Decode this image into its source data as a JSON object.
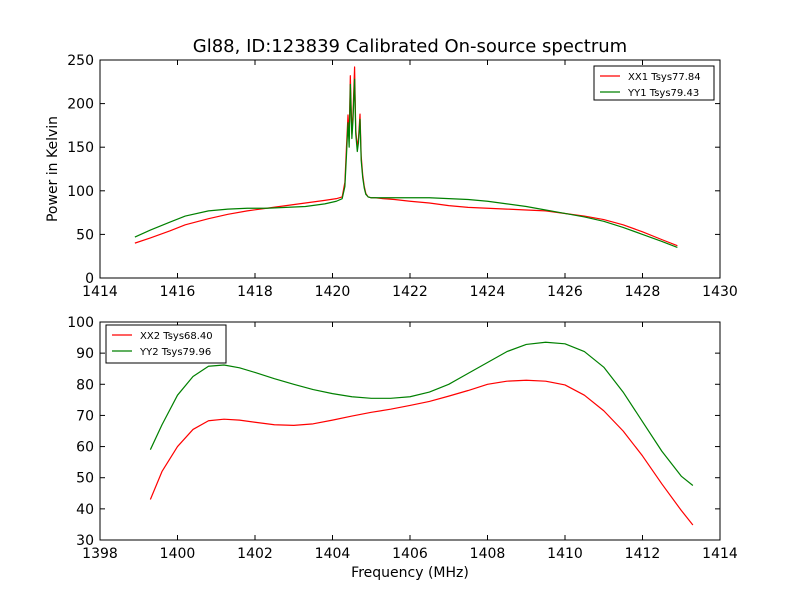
{
  "chart_data": [
    {
      "type": "line",
      "title": "Gl88, ID:123839 Calibrated On-source spectrum",
      "xlabel": "",
      "ylabel": "Power in Kelvin",
      "xlim": [
        1414,
        1430
      ],
      "ylim": [
        0,
        250
      ],
      "xticks": [
        "1414",
        "1416",
        "1418",
        "1420",
        "1422",
        "1424",
        "1426",
        "1428",
        "1430"
      ],
      "yticks": [
        "0",
        "50",
        "100",
        "150",
        "200",
        "250"
      ],
      "legend_position": "top-right",
      "grid": false,
      "series": [
        {
          "name": "XX1 Tsys77.84",
          "color": "#ff0000",
          "x": [
            1414.9,
            1415.3,
            1415.8,
            1416.2,
            1416.8,
            1417.3,
            1417.8,
            1418.3,
            1418.8,
            1419.3,
            1419.8,
            1420.1,
            1420.25,
            1420.32,
            1420.36,
            1420.4,
            1420.43,
            1420.46,
            1420.5,
            1420.53,
            1420.57,
            1420.6,
            1420.64,
            1420.67,
            1420.71,
            1420.74,
            1420.78,
            1420.82,
            1420.86,
            1420.92,
            1421.0,
            1421.1,
            1421.3,
            1421.6,
            1422.0,
            1422.5,
            1423.0,
            1423.5,
            1424.0,
            1424.5,
            1425.0,
            1425.5,
            1426.0,
            1426.5,
            1427.0,
            1427.5,
            1428.0,
            1428.5,
            1428.9
          ],
          "y": [
            40,
            46,
            54,
            61,
            68,
            73,
            77,
            80,
            83,
            86,
            89,
            91,
            93,
            110,
            150,
            187,
            160,
            232,
            165,
            190,
            242,
            170,
            150,
            160,
            188,
            140,
            118,
            105,
            97,
            93,
            92,
            92,
            91,
            90,
            88,
            86,
            83,
            81,
            80,
            79,
            78,
            77,
            74,
            71,
            67,
            61,
            53,
            44,
            37
          ]
        },
        {
          "name": "YY1 Tsys79.43",
          "color": "#008000",
          "x": [
            1414.9,
            1415.3,
            1415.8,
            1416.2,
            1416.8,
            1417.3,
            1417.8,
            1418.3,
            1418.8,
            1419.3,
            1419.8,
            1420.1,
            1420.25,
            1420.32,
            1420.36,
            1420.4,
            1420.43,
            1420.46,
            1420.5,
            1420.53,
            1420.57,
            1420.6,
            1420.64,
            1420.67,
            1420.71,
            1420.74,
            1420.78,
            1420.82,
            1420.86,
            1420.92,
            1421.0,
            1421.1,
            1421.3,
            1421.6,
            1422.0,
            1422.5,
            1423.0,
            1423.5,
            1424.0,
            1424.5,
            1425.0,
            1425.5,
            1426.0,
            1426.5,
            1427.0,
            1427.5,
            1428.0,
            1428.5,
            1428.9
          ],
          "y": [
            47,
            55,
            64,
            71,
            77,
            79,
            80,
            80,
            81,
            82,
            85,
            88,
            91,
            105,
            140,
            178,
            150,
            222,
            160,
            182,
            228,
            165,
            145,
            155,
            182,
            135,
            115,
            103,
            96,
            93,
            92,
            92,
            92,
            92,
            92,
            92,
            91,
            90,
            88,
            85,
            82,
            78,
            74,
            70,
            65,
            58,
            50,
            42,
            35
          ]
        }
      ]
    },
    {
      "type": "line",
      "title": "",
      "xlabel": "Frequency (MHz)",
      "ylabel": "",
      "xlim": [
        1398,
        1414
      ],
      "ylim": [
        30,
        100
      ],
      "xticks": [
        "1398",
        "1400",
        "1402",
        "1404",
        "1406",
        "1408",
        "1410",
        "1412",
        "1414"
      ],
      "yticks": [
        "30",
        "40",
        "50",
        "60",
        "70",
        "80",
        "90",
        "100"
      ],
      "legend_position": "top-left",
      "grid": false,
      "series": [
        {
          "name": "XX2 Tsys68.40",
          "color": "#ff0000",
          "x": [
            1399.3,
            1399.6,
            1400.0,
            1400.4,
            1400.8,
            1401.2,
            1401.6,
            1402.0,
            1402.5,
            1403.0,
            1403.5,
            1404.0,
            1404.5,
            1405.0,
            1405.5,
            1406.0,
            1406.5,
            1407.0,
            1407.5,
            1408.0,
            1408.5,
            1409.0,
            1409.5,
            1410.0,
            1410.5,
            1411.0,
            1411.5,
            1412.0,
            1412.5,
            1413.0,
            1413.3
          ],
          "y": [
            43,
            52,
            60,
            65.5,
            68.3,
            68.8,
            68.5,
            67.8,
            67.0,
            66.8,
            67.3,
            68.5,
            69.8,
            71.0,
            72.0,
            73.2,
            74.5,
            76.2,
            78.0,
            80.0,
            81.0,
            81.3,
            81.0,
            79.8,
            76.5,
            71.5,
            65.0,
            57.0,
            48.0,
            39.5,
            34.8
          ]
        },
        {
          "name": "YY2 Tsys79.96",
          "color": "#008000",
          "x": [
            1399.3,
            1399.6,
            1400.0,
            1400.4,
            1400.8,
            1401.2,
            1401.6,
            1402.0,
            1402.5,
            1403.0,
            1403.5,
            1404.0,
            1404.5,
            1405.0,
            1405.5,
            1406.0,
            1406.5,
            1407.0,
            1407.5,
            1408.0,
            1408.5,
            1409.0,
            1409.5,
            1410.0,
            1410.5,
            1411.0,
            1411.5,
            1412.0,
            1412.5,
            1413.0,
            1413.3
          ],
          "y": [
            59,
            67,
            76.5,
            82.5,
            85.8,
            86.2,
            85.3,
            83.8,
            81.8,
            80.0,
            78.3,
            77.0,
            76.0,
            75.5,
            75.5,
            76.0,
            77.5,
            80.0,
            83.5,
            87.0,
            90.5,
            92.8,
            93.5,
            93.0,
            90.5,
            85.5,
            77.5,
            68.0,
            58.5,
            50.5,
            47.5
          ]
        }
      ]
    }
  ]
}
